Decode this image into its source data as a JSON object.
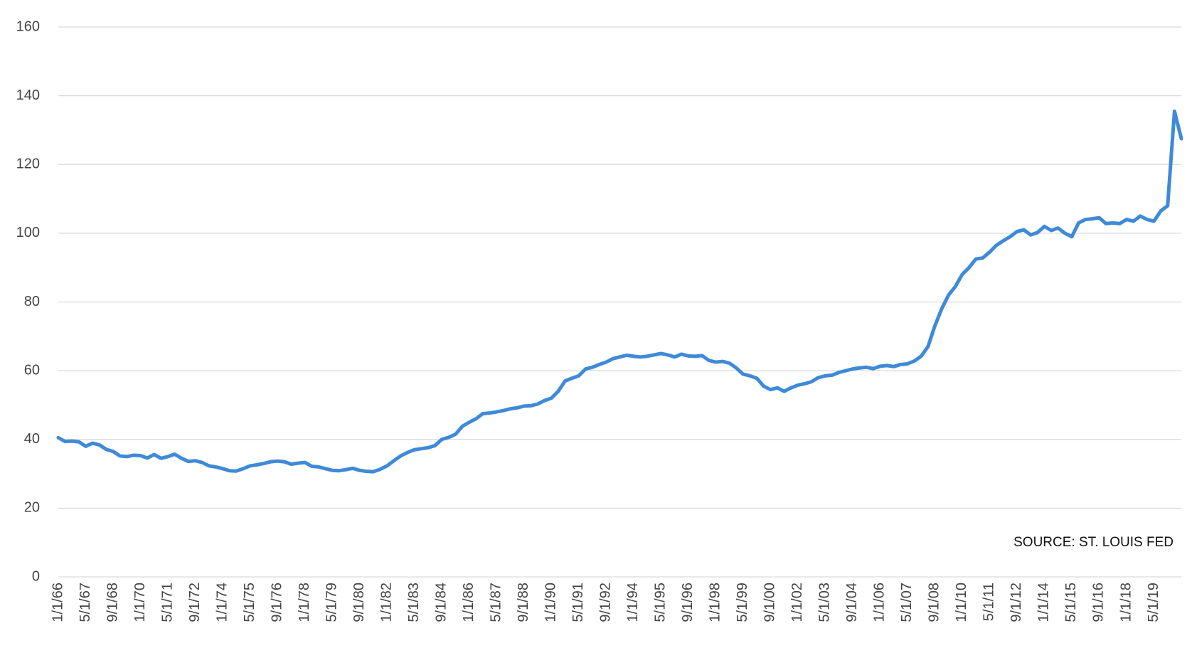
{
  "chart_data": {
    "type": "line",
    "annotation": "SOURCE: ST. LOUIS FED",
    "color": "#3f8ad8",
    "grid": true,
    "ylim": [
      0,
      160
    ],
    "yticks": [
      0,
      20,
      40,
      60,
      80,
      100,
      120,
      140,
      160
    ],
    "categories": [
      "1/1/66",
      null,
      null,
      null,
      "5/1/67",
      null,
      null,
      null,
      "9/1/68",
      null,
      null,
      null,
      "1/1/70",
      null,
      null,
      null,
      "5/1/71",
      null,
      null,
      null,
      "9/1/72",
      null,
      null,
      null,
      "1/1/74",
      null,
      null,
      null,
      "5/1/75",
      null,
      null,
      null,
      "9/1/76",
      null,
      null,
      null,
      "1/1/78",
      null,
      null,
      null,
      "5/1/79",
      null,
      null,
      null,
      "9/1/80",
      null,
      null,
      null,
      "1/1/82",
      null,
      null,
      null,
      "5/1/83",
      null,
      null,
      null,
      "9/1/84",
      null,
      null,
      null,
      "1/1/86",
      null,
      null,
      null,
      "5/1/87",
      null,
      null,
      null,
      "9/1/88",
      null,
      null,
      null,
      "1/1/90",
      null,
      null,
      null,
      "5/1/91",
      null,
      null,
      null,
      "9/1/92",
      null,
      null,
      null,
      "1/1/94",
      null,
      null,
      null,
      "5/1/95",
      null,
      null,
      null,
      "9/1/96",
      null,
      null,
      null,
      "1/1/98",
      null,
      null,
      null,
      "5/1/99",
      null,
      null,
      null,
      "9/1/00",
      null,
      null,
      null,
      "1/1/02",
      null,
      null,
      null,
      "5/1/03",
      null,
      null,
      null,
      "9/1/04",
      null,
      null,
      null,
      "1/1/06",
      null,
      null,
      null,
      "5/1/07",
      null,
      null,
      null,
      "9/1/08",
      null,
      null,
      null,
      "1/1/10",
      null,
      null,
      null,
      "5/1/11",
      null,
      null,
      null,
      "9/1/12",
      null,
      null,
      null,
      "1/1/14",
      null,
      null,
      null,
      "5/1/15",
      null,
      null,
      null,
      "9/1/16",
      null,
      null,
      null,
      "1/1/18",
      null,
      null,
      null,
      "5/1/19",
      null,
      null,
      null,
      null
    ],
    "values": [
      40.5,
      39.4,
      39.5,
      39.3,
      38.0,
      38.9,
      38.4,
      37.1,
      36.5,
      35.2,
      35.0,
      35.4,
      35.3,
      34.6,
      35.6,
      34.5,
      35.0,
      35.7,
      34.5,
      33.6,
      33.8,
      33.3,
      32.3,
      32.0,
      31.5,
      30.9,
      30.8,
      31.5,
      32.3,
      32.6,
      33.0,
      33.5,
      33.7,
      33.5,
      32.8,
      33.1,
      33.3,
      32.2,
      32.0,
      31.5,
      31.0,
      30.9,
      31.2,
      31.6,
      31.0,
      30.7,
      30.6,
      31.3,
      32.3,
      33.8,
      35.2,
      36.2,
      37.0,
      37.3,
      37.6,
      38.2,
      40.0,
      40.6,
      41.5,
      43.8,
      45.0,
      46.0,
      47.5,
      47.7,
      48.0,
      48.4,
      48.9,
      49.2,
      49.7,
      49.8,
      50.3,
      51.3,
      52.0,
      54.0,
      57.0,
      57.8,
      58.5,
      60.5,
      61.0,
      61.8,
      62.5,
      63.5,
      64.0,
      64.5,
      64.2,
      64.0,
      64.2,
      64.6,
      65.0,
      64.6,
      64.0,
      64.8,
      64.3,
      64.2,
      64.4,
      63.0,
      62.5,
      62.7,
      62.2,
      60.8,
      59.0,
      58.5,
      57.8,
      55.5,
      54.5,
      55.0,
      54.0,
      55.0,
      55.8,
      56.2,
      56.8,
      58.0,
      58.5,
      58.7,
      59.5,
      60.0,
      60.5,
      60.8,
      61.0,
      60.6,
      61.3,
      61.5,
      61.2,
      61.8,
      62.0,
      62.8,
      64.2,
      67.0,
      73.0,
      78.0,
      82.0,
      84.5,
      88.0,
      90.0,
      92.5,
      92.8,
      94.5,
      96.5,
      97.8,
      99.0,
      100.5,
      101.0,
      99.5,
      100.2,
      102.0,
      100.8,
      101.5,
      100.0,
      99.0,
      103.0,
      104.0,
      104.2,
      104.5,
      102.8,
      103.0,
      102.8,
      104.0,
      103.5,
      105.0,
      104.0,
      103.5,
      106.5,
      108.0,
      135.5,
      127.5
    ]
  }
}
